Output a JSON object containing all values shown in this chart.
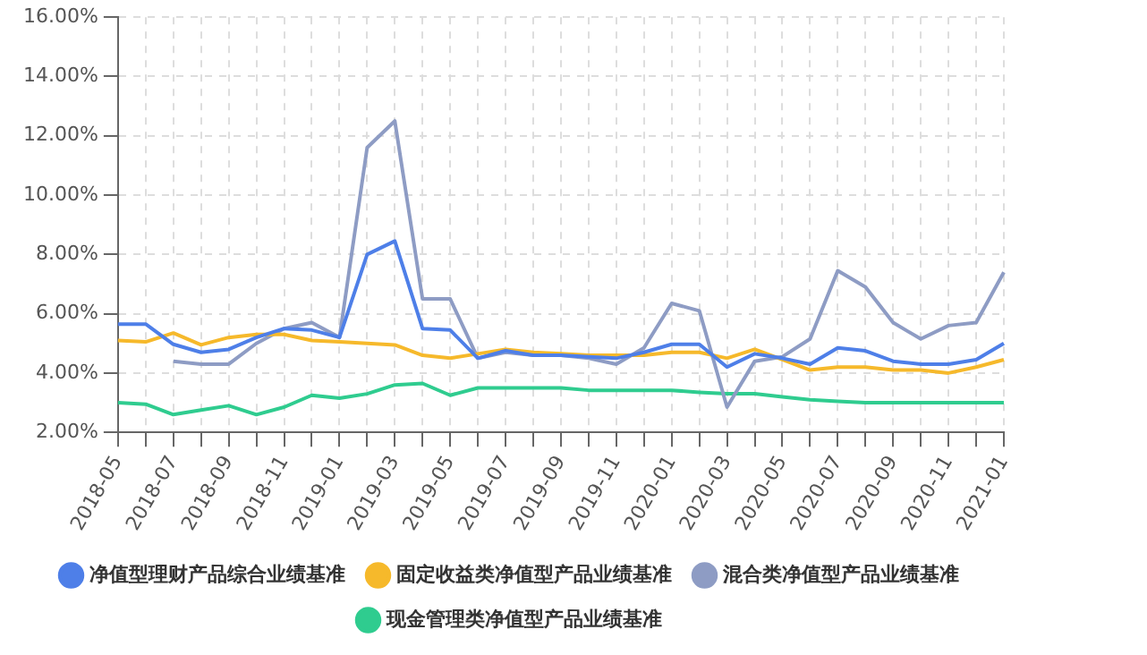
{
  "chart_data": {
    "type": "line",
    "categories": [
      "2018-05",
      null,
      "2018-07",
      null,
      "2018-09",
      null,
      "2018-11",
      null,
      "2019-01",
      null,
      "2019-03",
      null,
      "2019-05",
      null,
      "2019-07",
      null,
      "2019-09",
      null,
      "2019-11",
      null,
      "2020-01",
      null,
      "2020-03",
      null,
      "2020-05",
      null,
      "2020-07",
      null,
      "2020-09",
      null,
      "2020-11",
      null,
      "2021-01"
    ],
    "series": [
      {
        "name": "净值型理财产品综合业绩基准",
        "color": "#4e7fe8",
        "values": [
          5.65,
          5.65,
          4.97,
          4.7,
          4.8,
          5.2,
          5.5,
          5.45,
          5.2,
          8.0,
          8.45,
          5.5,
          5.45,
          4.5,
          4.75,
          4.6,
          4.6,
          4.55,
          4.5,
          4.7,
          4.97,
          4.97,
          4.2,
          4.65,
          4.5,
          4.3,
          4.85,
          4.75,
          4.4,
          4.3,
          4.3,
          4.45,
          5.0
        ]
      },
      {
        "name": "固定收益类净值型产品业绩基准",
        "color": "#f6b92b",
        "values": [
          5.1,
          5.05,
          5.35,
          4.95,
          5.2,
          5.3,
          5.3,
          5.1,
          5.05,
          5.0,
          4.95,
          4.6,
          4.5,
          4.65,
          4.8,
          4.7,
          4.65,
          4.6,
          4.6,
          4.6,
          4.7,
          4.7,
          4.5,
          4.8,
          4.45,
          4.1,
          4.2,
          4.2,
          4.1,
          4.1,
          4.0,
          4.2,
          4.45
        ]
      },
      {
        "name": "混合类净值型产品业绩基准",
        "color": "#8e9cc4",
        "values": [
          null,
          null,
          4.4,
          4.3,
          4.3,
          5.0,
          5.5,
          5.7,
          5.2,
          11.6,
          12.5,
          6.5,
          6.5,
          4.5,
          4.7,
          4.6,
          4.6,
          4.5,
          4.3,
          4.85,
          6.35,
          6.1,
          2.85,
          4.4,
          4.55,
          5.15,
          7.45,
          6.9,
          5.7,
          5.15,
          5.6,
          5.7,
          7.4
        ]
      },
      {
        "name": "现金管理类净值型产品业绩基准",
        "color": "#2fcc8f",
        "values": [
          3.0,
          2.95,
          2.6,
          2.75,
          2.9,
          2.6,
          2.85,
          3.25,
          3.15,
          3.3,
          3.6,
          3.65,
          3.25,
          3.5,
          3.5,
          3.5,
          3.5,
          3.42,
          3.42,
          3.42,
          3.42,
          3.35,
          3.3,
          3.3,
          3.2,
          3.1,
          3.05,
          3.0,
          3.0,
          3.0,
          3.0,
          3.0,
          3.0
        ]
      }
    ],
    "ylim": [
      2,
      16
    ],
    "yticks": [
      {
        "value": 2,
        "label": "2.00%"
      },
      {
        "value": 4,
        "label": "4.00%"
      },
      {
        "value": 6,
        "label": "6.00%"
      },
      {
        "value": 8,
        "label": "8.00%"
      },
      {
        "value": 10,
        "label": "10.00%"
      },
      {
        "value": 12,
        "label": "12.00%"
      },
      {
        "value": 14,
        "label": "14.00%"
      },
      {
        "value": 16,
        "label": "16.00%"
      }
    ],
    "grid": true,
    "legend": "bottom",
    "marker": "none",
    "line_style": "solid"
  }
}
